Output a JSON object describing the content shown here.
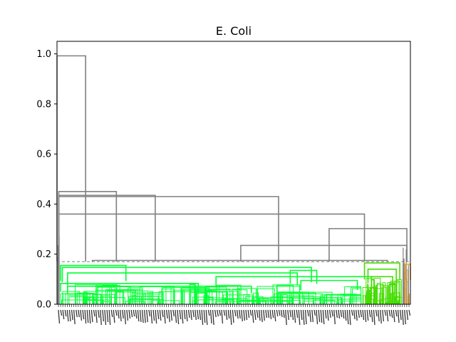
{
  "chart_data": {
    "type": "dendrogram",
    "title": "E. Coli",
    "xlabel": "",
    "ylabel": "",
    "ylim": [
      0,
      1.05
    ],
    "yticks": [
      0.0,
      0.2,
      0.4,
      0.6,
      0.8,
      1.0
    ],
    "ytick_labels": [
      "0.0",
      "0.2",
      "0.4",
      "0.6",
      "0.8",
      "1.0"
    ],
    "threshold": 0.17,
    "grid": false,
    "colors": {
      "above_threshold": "#808080",
      "cluster_bright_green": "#00ff33",
      "cluster_lime": "#44dd00",
      "cluster_orange": "#f0a020",
      "threshold_line": "#808080"
    },
    "merges": [
      {
        "left": 0.0,
        "right": 0.081,
        "height": 0.992,
        "color": "above_threshold"
      },
      {
        "left": 0.005,
        "right": 0.168,
        "height": 0.45,
        "color": "above_threshold"
      },
      {
        "left": 0.005,
        "right": 0.278,
        "height": 0.435,
        "color": "above_threshold"
      },
      {
        "left": 0.005,
        "right": 0.627,
        "height": 0.43,
        "color": "above_threshold"
      },
      {
        "left": 0.005,
        "right": 0.87,
        "height": 0.36,
        "color": "above_threshold"
      },
      {
        "left": 0.77,
        "right": 0.99,
        "height": 0.302,
        "color": "above_threshold"
      },
      {
        "left": 0.52,
        "right": 0.99,
        "height": 0.235,
        "color": "above_threshold"
      },
      {
        "left": 0.1,
        "right": 0.935,
        "height": 0.175,
        "color": "above_threshold"
      },
      {
        "left": 0.01,
        "right": 0.195,
        "height": 0.155,
        "color": "cluster_bright_green"
      },
      {
        "left": 0.015,
        "right": 0.72,
        "height": 0.147,
        "color": "cluster_bright_green"
      },
      {
        "left": 0.03,
        "right": 0.68,
        "height": 0.125,
        "color": "cluster_bright_green"
      },
      {
        "left": 0.66,
        "right": 0.735,
        "height": 0.135,
        "color": "cluster_bright_green"
      },
      {
        "left": 0.45,
        "right": 0.89,
        "height": 0.11,
        "color": "cluster_bright_green"
      },
      {
        "left": 0.69,
        "right": 0.85,
        "height": 0.095,
        "color": "cluster_bright_green"
      },
      {
        "left": 0.01,
        "right": 0.4,
        "height": 0.083,
        "color": "cluster_bright_green"
      },
      {
        "left": 0.03,
        "right": 0.55,
        "height": 0.072,
        "color": "cluster_bright_green"
      },
      {
        "left": 0.87,
        "right": 0.97,
        "height": 0.165,
        "color": "cluster_lime"
      },
      {
        "left": 0.88,
        "right": 0.96,
        "height": 0.14,
        "color": "cluster_lime"
      },
      {
        "left": 0.89,
        "right": 0.95,
        "height": 0.11,
        "color": "cluster_lime"
      },
      {
        "left": 0.985,
        "right": 1.0,
        "height": 0.16,
        "color": "cluster_orange"
      }
    ],
    "x_tick_count": 160
  }
}
